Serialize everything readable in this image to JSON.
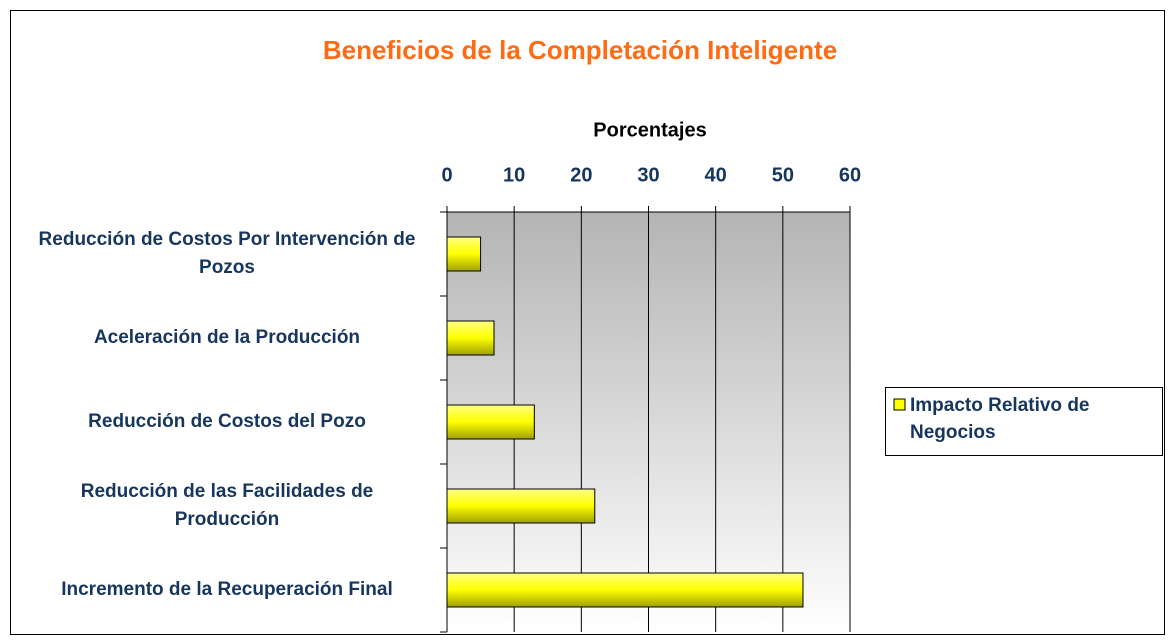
{
  "chart_data": {
    "type": "bar",
    "orientation": "horizontal",
    "title": "Beneficios de la Completación Inteligente",
    "x_label": "Porcentajes",
    "categories": [
      "Reducción de Costos Por Intervención de Pozos",
      "Aceleración de la Producción",
      "Reducción de Costos del Pozo",
      "Reducción de las Facilidades de Producción",
      "Incremento de la Recuperación Final"
    ],
    "series": [
      {
        "name": "Impacto Relativo de Negocios",
        "color": "#ffff00",
        "values": [
          5,
          7,
          13,
          22,
          53
        ]
      }
    ],
    "xlim": [
      0,
      60
    ],
    "xticks": [
      0,
      10,
      20,
      30,
      40,
      50,
      60
    ],
    "grid": true,
    "legend": "right"
  }
}
